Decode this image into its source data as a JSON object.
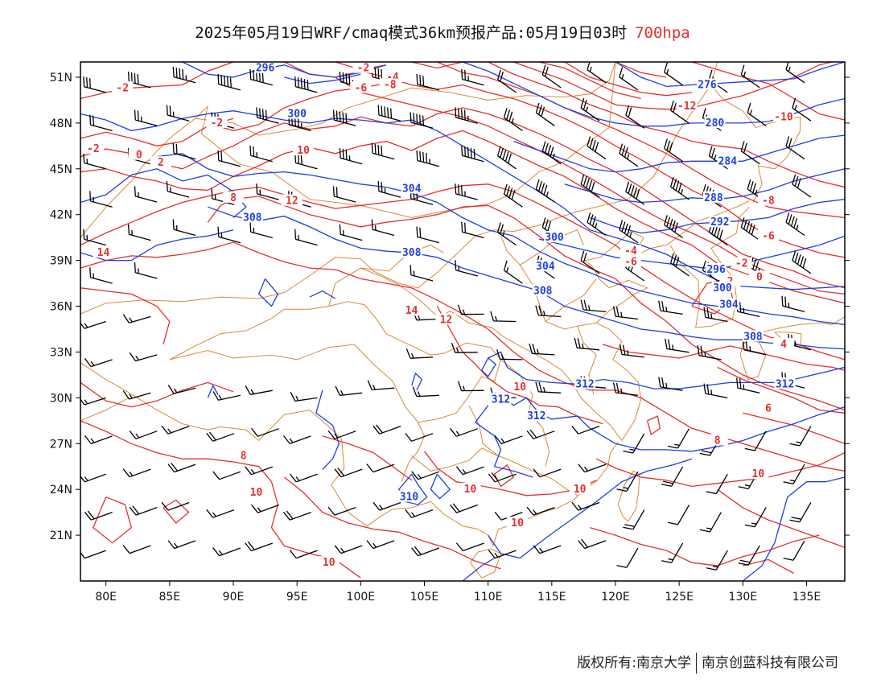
{
  "header": {
    "title": "2025年05月19日WRF/cmaq模式36km预报产品:05月19日03时",
    "level": "700hpa"
  },
  "footer": {
    "copyright": "版权所有:南京大学",
    "company": "南京创蓝科技有限公司"
  },
  "colors": {
    "height_contours": "#1f3fe0",
    "temperature_contours": "#e03030",
    "boundaries": "#d68a3a",
    "wind_barbs": "#000000",
    "level_text": "#e03030"
  },
  "chart_data": {
    "type": "map",
    "projection": "lat-lon",
    "xlim": [
      78,
      138
    ],
    "ylim": [
      18,
      52
    ],
    "x_ticks": [
      "80E",
      "85E",
      "90E",
      "95E",
      "100E",
      "105E",
      "110E",
      "115E",
      "120E",
      "125E",
      "130E",
      "135E"
    ],
    "x_tick_values": [
      80,
      85,
      90,
      95,
      100,
      105,
      110,
      115,
      120,
      125,
      130,
      135
    ],
    "y_ticks": [
      "21N",
      "24N",
      "27N",
      "30N",
      "33N",
      "36N",
      "39N",
      "42N",
      "45N",
      "48N",
      "51N"
    ],
    "y_tick_values": [
      21,
      24,
      27,
      30,
      33,
      36,
      39,
      42,
      45,
      48,
      51
    ],
    "height_contours": [
      {
        "value": "296",
        "lon": 92.5,
        "lat": 51.6
      },
      {
        "value": "300",
        "lon": 95.0,
        "lat": 48.6
      },
      {
        "value": "304",
        "lon": 104.0,
        "lat": 43.7
      },
      {
        "value": "308",
        "lon": 104.0,
        "lat": 39.5
      },
      {
        "value": "308",
        "lon": 91.5,
        "lat": 41.8
      },
      {
        "value": "300",
        "lon": 115.2,
        "lat": 40.5
      },
      {
        "value": "304",
        "lon": 114.5,
        "lat": 38.6
      },
      {
        "value": "308",
        "lon": 114.3,
        "lat": 37.0
      },
      {
        "value": "312",
        "lon": 117.6,
        "lat": 30.9
      },
      {
        "value": "312",
        "lon": 111.0,
        "lat": 29.9
      },
      {
        "value": "312",
        "lon": 113.8,
        "lat": 28.8
      },
      {
        "value": "312",
        "lon": 133.3,
        "lat": 30.9
      },
      {
        "value": "308",
        "lon": 130.8,
        "lat": 34.0
      },
      {
        "value": "304",
        "lon": 128.9,
        "lat": 36.1
      },
      {
        "value": "300",
        "lon": 128.4,
        "lat": 37.2
      },
      {
        "value": "296",
        "lon": 127.9,
        "lat": 38.4
      },
      {
        "value": "292",
        "lon": 128.2,
        "lat": 41.5
      },
      {
        "value": "288",
        "lon": 127.7,
        "lat": 43.1
      },
      {
        "value": "284",
        "lon": 128.8,
        "lat": 45.5
      },
      {
        "value": "280",
        "lon": 127.8,
        "lat": 48.0
      },
      {
        "value": "276",
        "lon": 127.2,
        "lat": 50.5
      },
      {
        "value": "310",
        "lon": 103.8,
        "lat": 23.5
      }
    ],
    "temperature_contours": [
      {
        "value": "-2",
        "lon": 100.2,
        "lat": 51.6
      },
      {
        "value": "-4",
        "lon": 102.5,
        "lat": 51.0
      },
      {
        "value": "-6",
        "lon": 100.0,
        "lat": 50.3
      },
      {
        "value": "-8",
        "lon": 102.3,
        "lat": 50.5
      },
      {
        "value": "-2",
        "lon": 81.3,
        "lat": 50.3
      },
      {
        "value": "-2",
        "lon": 88.7,
        "lat": 48.0
      },
      {
        "value": "-2",
        "lon": 79.0,
        "lat": 46.3
      },
      {
        "value": "0",
        "lon": 82.6,
        "lat": 45.9
      },
      {
        "value": "2",
        "lon": 84.3,
        "lat": 45.4
      },
      {
        "value": "10",
        "lon": 95.5,
        "lat": 46.2
      },
      {
        "value": "8",
        "lon": 90.0,
        "lat": 43.1
      },
      {
        "value": "12",
        "lon": 94.6,
        "lat": 42.9
      },
      {
        "value": "14",
        "lon": 79.8,
        "lat": 39.5
      },
      {
        "value": "14",
        "lon": 104.0,
        "lat": 35.7
      },
      {
        "value": "12",
        "lon": 106.7,
        "lat": 35.1
      },
      {
        "value": "10",
        "lon": 112.5,
        "lat": 30.7
      },
      {
        "value": "8",
        "lon": 90.8,
        "lat": 26.2
      },
      {
        "value": "10",
        "lon": 91.8,
        "lat": 23.8
      },
      {
        "value": "10",
        "lon": 97.5,
        "lat": 19.2
      },
      {
        "value": "10",
        "lon": 108.6,
        "lat": 24.0
      },
      {
        "value": "10",
        "lon": 112.3,
        "lat": 21.8
      },
      {
        "value": "10",
        "lon": 117.2,
        "lat": 24.0
      },
      {
        "value": "-12",
        "lon": 125.6,
        "lat": 49.1
      },
      {
        "value": "-10",
        "lon": 133.2,
        "lat": 48.4
      },
      {
        "value": "-8",
        "lon": 132.0,
        "lat": 42.9
      },
      {
        "value": "-6",
        "lon": 132.0,
        "lat": 40.6
      },
      {
        "value": "-4",
        "lon": 121.2,
        "lat": 39.6
      },
      {
        "value": "-6",
        "lon": 121.2,
        "lat": 38.9
      },
      {
        "value": "-2",
        "lon": 129.9,
        "lat": 38.8
      },
      {
        "value": "0",
        "lon": 131.3,
        "lat": 37.9
      },
      {
        "value": "2",
        "lon": 129.0,
        "lat": 37.6
      },
      {
        "value": "4",
        "lon": 133.2,
        "lat": 33.5
      },
      {
        "value": "6",
        "lon": 132.0,
        "lat": 29.3
      },
      {
        "value": "8",
        "lon": 128.0,
        "lat": 27.2
      },
      {
        "value": "10",
        "lon": 131.2,
        "lat": 25.0
      }
    ]
  }
}
